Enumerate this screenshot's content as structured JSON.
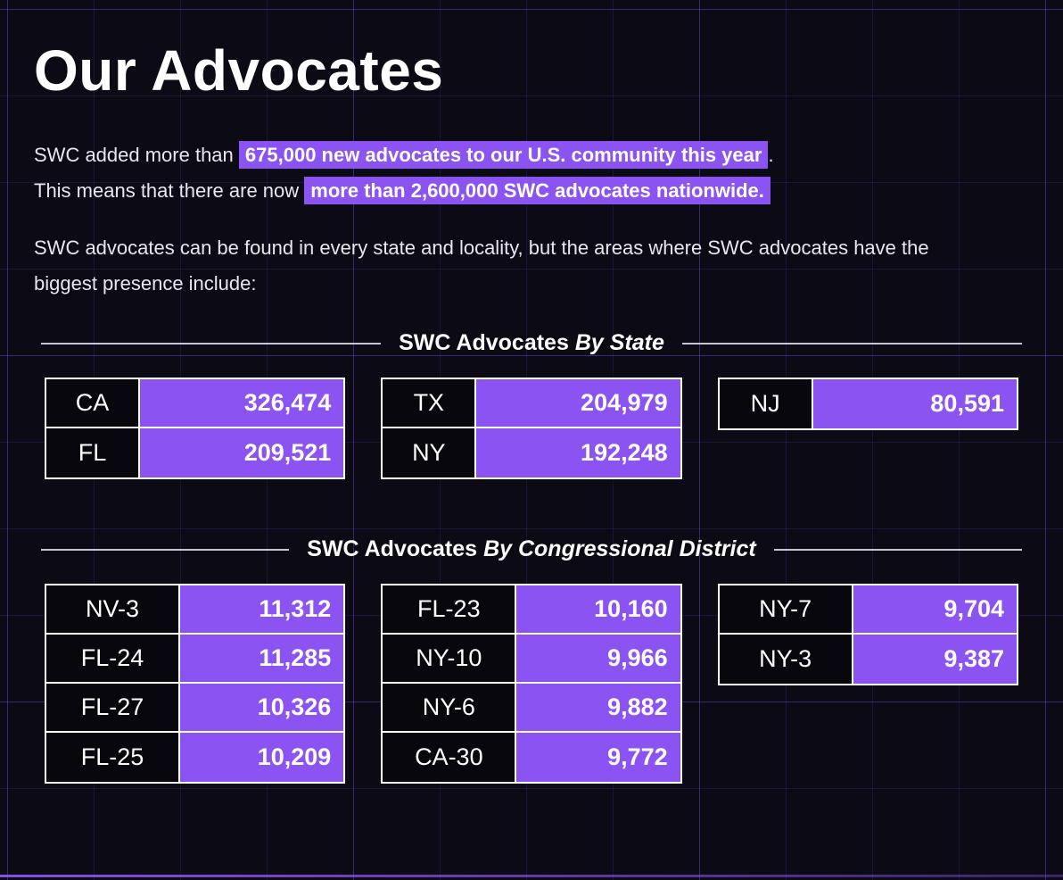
{
  "page_title": "Our Advocates",
  "intro": {
    "line1_pre": "SWC added more than ",
    "line1_highlight": "675,000 new advocates to our U.S. community this year",
    "line1_post": ".",
    "line2_pre": "This means that there are now ",
    "line2_highlight": "more than 2,600,000 SWC advocates nationwide.",
    "paragraph2": "SWC advocates can be found in every state and locality, but the areas where SWC advocates have the biggest presence include:"
  },
  "sections": [
    {
      "title": "SWC Advocates",
      "title_emphasis": "By State",
      "tables": [
        {
          "rows": [
            {
              "label": "CA",
              "value": "326,474"
            },
            {
              "label": "FL",
              "value": "209,521"
            }
          ]
        },
        {
          "rows": [
            {
              "label": "TX",
              "value": "204,979"
            },
            {
              "label": "NY",
              "value": "192,248"
            }
          ]
        },
        {
          "rows": [
            {
              "label": "NJ",
              "value": "80,591"
            }
          ]
        }
      ]
    },
    {
      "title": "SWC Advocates",
      "title_emphasis": "By Congressional District",
      "tables": [
        {
          "rows": [
            {
              "label": "NV-3",
              "value": "11,312"
            },
            {
              "label": "FL-24",
              "value": "11,285"
            },
            {
              "label": "FL-27",
              "value": "10,326"
            },
            {
              "label": "FL-25",
              "value": "10,209"
            }
          ]
        },
        {
          "rows": [
            {
              "label": "FL-23",
              "value": "10,160"
            },
            {
              "label": "NY-10",
              "value": "9,966"
            },
            {
              "label": "NY-6",
              "value": "9,882"
            },
            {
              "label": "CA-30",
              "value": "9,772"
            }
          ]
        },
        {
          "rows": [
            {
              "label": "NY-7",
              "value": "9,704"
            },
            {
              "label": "NY-3",
              "value": "9,387"
            }
          ]
        }
      ]
    }
  ],
  "colors": {
    "accent": "#8A53F2",
    "background": "#0B0A15",
    "cell_black": "#07070D",
    "border": "#FFFFFF",
    "grid_line": "#2C1C5E",
    "text": "#E9E9F1"
  }
}
